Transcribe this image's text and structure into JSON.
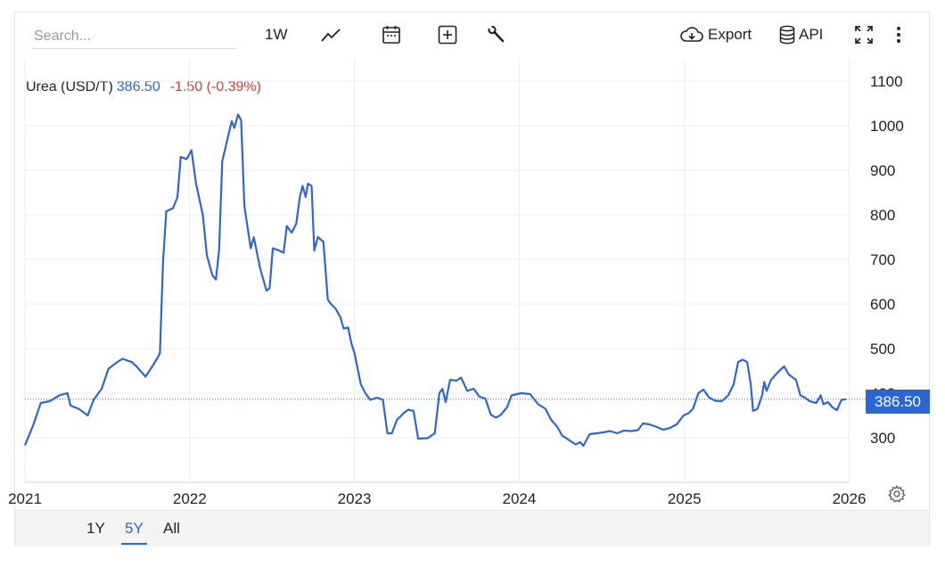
{
  "toolbar": {
    "search_placeholder": "Search...",
    "interval_label": "1W",
    "export_label": "Export",
    "api_label": "API",
    "icons": [
      "line-chart-icon",
      "calendar-icon",
      "add-box-icon",
      "wrench-icon",
      "cloud-download-icon",
      "database-icon",
      "fullscreen-icon",
      "more-vertical-icon"
    ]
  },
  "legend": {
    "name": "Urea (USD/T)",
    "value": "386.50",
    "change": "-1.50 (-0.39%)"
  },
  "last_price_tag": "386.50",
  "range_buttons": [
    {
      "label": "1Y",
      "active": false
    },
    {
      "label": "5Y",
      "active": true
    },
    {
      "label": "All",
      "active": false
    }
  ],
  "colors": {
    "line": "#2f66d0",
    "accent": "#2a66d6",
    "negative": "#d93a30",
    "grid": "#ececec"
  },
  "chart_data": {
    "type": "line",
    "title": "",
    "xlabel": "",
    "ylabel": "",
    "x_ticks": [
      "2021",
      "2022",
      "2023",
      "2024",
      "2025",
      "2026"
    ],
    "y_ticks": [
      300,
      400,
      500,
      600,
      700,
      800,
      900,
      1000,
      1100
    ],
    "xlim": [
      "2021-01-01",
      "2025-12-31"
    ],
    "ylim": [
      200,
      1150
    ],
    "grid": true,
    "last_value": 386.5,
    "series": [
      {
        "name": "Urea (USD/T)",
        "points": [
          [
            "2021-01-01",
            283
          ],
          [
            "2021-01-20",
            330
          ],
          [
            "2021-02-05",
            378
          ],
          [
            "2021-02-25",
            382
          ],
          [
            "2021-03-18",
            395
          ],
          [
            "2021-04-05",
            400
          ],
          [
            "2021-04-12",
            372
          ],
          [
            "2021-04-30",
            365
          ],
          [
            "2021-05-20",
            350
          ],
          [
            "2021-06-02",
            385
          ],
          [
            "2021-06-20",
            410
          ],
          [
            "2021-07-05",
            455
          ],
          [
            "2021-07-25",
            470
          ],
          [
            "2021-08-05",
            477
          ],
          [
            "2021-08-25",
            470
          ],
          [
            "2021-09-05",
            460
          ],
          [
            "2021-09-25",
            437
          ],
          [
            "2021-10-10",
            460
          ],
          [
            "2021-10-22",
            480
          ],
          [
            "2021-10-27",
            490
          ],
          [
            "2021-11-03",
            695
          ],
          [
            "2021-11-10",
            808
          ],
          [
            "2021-11-25",
            815
          ],
          [
            "2021-12-05",
            840
          ],
          [
            "2021-12-12",
            930
          ],
          [
            "2021-12-25",
            925
          ],
          [
            "2022-01-05",
            945
          ],
          [
            "2022-01-15",
            870
          ],
          [
            "2022-01-30",
            800
          ],
          [
            "2022-02-08",
            710
          ],
          [
            "2022-02-20",
            665
          ],
          [
            "2022-02-28",
            655
          ],
          [
            "2022-03-07",
            720
          ],
          [
            "2022-03-14",
            920
          ],
          [
            "2022-03-28",
            980
          ],
          [
            "2022-04-04",
            1010
          ],
          [
            "2022-04-10",
            995
          ],
          [
            "2022-04-18",
            1025
          ],
          [
            "2022-04-25",
            1012
          ],
          [
            "2022-05-02",
            820
          ],
          [
            "2022-05-16",
            725
          ],
          [
            "2022-05-23",
            750
          ],
          [
            "2022-06-06",
            680
          ],
          [
            "2022-06-20",
            630
          ],
          [
            "2022-06-27",
            635
          ],
          [
            "2022-07-04",
            725
          ],
          [
            "2022-07-18",
            720
          ],
          [
            "2022-07-28",
            715
          ],
          [
            "2022-08-04",
            775
          ],
          [
            "2022-08-15",
            760
          ],
          [
            "2022-08-25",
            780
          ],
          [
            "2022-09-02",
            840
          ],
          [
            "2022-09-08",
            865
          ],
          [
            "2022-09-15",
            840
          ],
          [
            "2022-09-20",
            870
          ],
          [
            "2022-09-28",
            865
          ],
          [
            "2022-10-04",
            720
          ],
          [
            "2022-10-12",
            750
          ],
          [
            "2022-10-24",
            740
          ],
          [
            "2022-11-03",
            610
          ],
          [
            "2022-11-10",
            600
          ],
          [
            "2022-11-20",
            590
          ],
          [
            "2022-12-01",
            570
          ],
          [
            "2022-12-08",
            545
          ],
          [
            "2022-12-18",
            547
          ],
          [
            "2022-12-25",
            512
          ],
          [
            "2023-01-01",
            490
          ],
          [
            "2023-01-15",
            420
          ],
          [
            "2023-01-25",
            400
          ],
          [
            "2023-02-05",
            385
          ],
          [
            "2023-02-20",
            390
          ],
          [
            "2023-03-05",
            385
          ],
          [
            "2023-03-15",
            310
          ],
          [
            "2023-03-25",
            310
          ],
          [
            "2023-04-05",
            340
          ],
          [
            "2023-04-20",
            355
          ],
          [
            "2023-04-30",
            363
          ],
          [
            "2023-05-12",
            360
          ],
          [
            "2023-05-22",
            298
          ],
          [
            "2023-06-12",
            299
          ],
          [
            "2023-06-28",
            310
          ],
          [
            "2023-07-08",
            400
          ],
          [
            "2023-07-15",
            410
          ],
          [
            "2023-07-22",
            380
          ],
          [
            "2023-08-01",
            430
          ],
          [
            "2023-08-15",
            428
          ],
          [
            "2023-08-25",
            435
          ],
          [
            "2023-09-08",
            405
          ],
          [
            "2023-09-22",
            410
          ],
          [
            "2023-10-05",
            392
          ],
          [
            "2023-10-18",
            388
          ],
          [
            "2023-10-30",
            352
          ],
          [
            "2023-11-10",
            345
          ],
          [
            "2023-11-20",
            350
          ],
          [
            "2023-12-05",
            368
          ],
          [
            "2023-12-15",
            395
          ],
          [
            "2024-01-05",
            400
          ],
          [
            "2024-01-25",
            398
          ],
          [
            "2024-02-12",
            375
          ],
          [
            "2024-02-28",
            365
          ],
          [
            "2024-03-12",
            340
          ],
          [
            "2024-03-25",
            325
          ],
          [
            "2024-04-05",
            305
          ],
          [
            "2024-04-20",
            295
          ],
          [
            "2024-05-05",
            285
          ],
          [
            "2024-05-15",
            290
          ],
          [
            "2024-05-22",
            282
          ],
          [
            "2024-06-05",
            308
          ],
          [
            "2024-06-20",
            310
          ],
          [
            "2024-07-05",
            312
          ],
          [
            "2024-07-20",
            315
          ],
          [
            "2024-08-05",
            310
          ],
          [
            "2024-08-20",
            316
          ],
          [
            "2024-09-05",
            315
          ],
          [
            "2024-09-20",
            317
          ],
          [
            "2024-10-01",
            332
          ],
          [
            "2024-10-15",
            330
          ],
          [
            "2024-10-30",
            325
          ],
          [
            "2024-11-15",
            318
          ],
          [
            "2024-11-30",
            322
          ],
          [
            "2024-12-15",
            330
          ],
          [
            "2024-12-30",
            350
          ],
          [
            "2025-01-10",
            355
          ],
          [
            "2025-01-20",
            365
          ],
          [
            "2025-02-01",
            400
          ],
          [
            "2025-02-12",
            408
          ],
          [
            "2025-02-25",
            390
          ],
          [
            "2025-03-10",
            383
          ],
          [
            "2025-03-25",
            382
          ],
          [
            "2025-04-08",
            395
          ],
          [
            "2025-04-20",
            420
          ],
          [
            "2025-04-30",
            470
          ],
          [
            "2025-05-10",
            475
          ],
          [
            "2025-05-20",
            470
          ],
          [
            "2025-05-28",
            420
          ],
          [
            "2025-06-02",
            360
          ],
          [
            "2025-06-12",
            365
          ],
          [
            "2025-06-22",
            395
          ],
          [
            "2025-06-27",
            425
          ],
          [
            "2025-07-02",
            405
          ],
          [
            "2025-07-12",
            430
          ],
          [
            "2025-07-30",
            450
          ],
          [
            "2025-08-10",
            460
          ],
          [
            "2025-08-20",
            442
          ],
          [
            "2025-09-05",
            430
          ],
          [
            "2025-09-15",
            395
          ],
          [
            "2025-09-25",
            390
          ],
          [
            "2025-10-05",
            382
          ],
          [
            "2025-10-20",
            378
          ],
          [
            "2025-10-30",
            395
          ],
          [
            "2025-11-05",
            375
          ],
          [
            "2025-11-15",
            380
          ],
          [
            "2025-11-25",
            368
          ],
          [
            "2025-12-05",
            362
          ],
          [
            "2025-12-15",
            385
          ],
          [
            "2025-12-25",
            386.5
          ]
        ]
      }
    ]
  }
}
